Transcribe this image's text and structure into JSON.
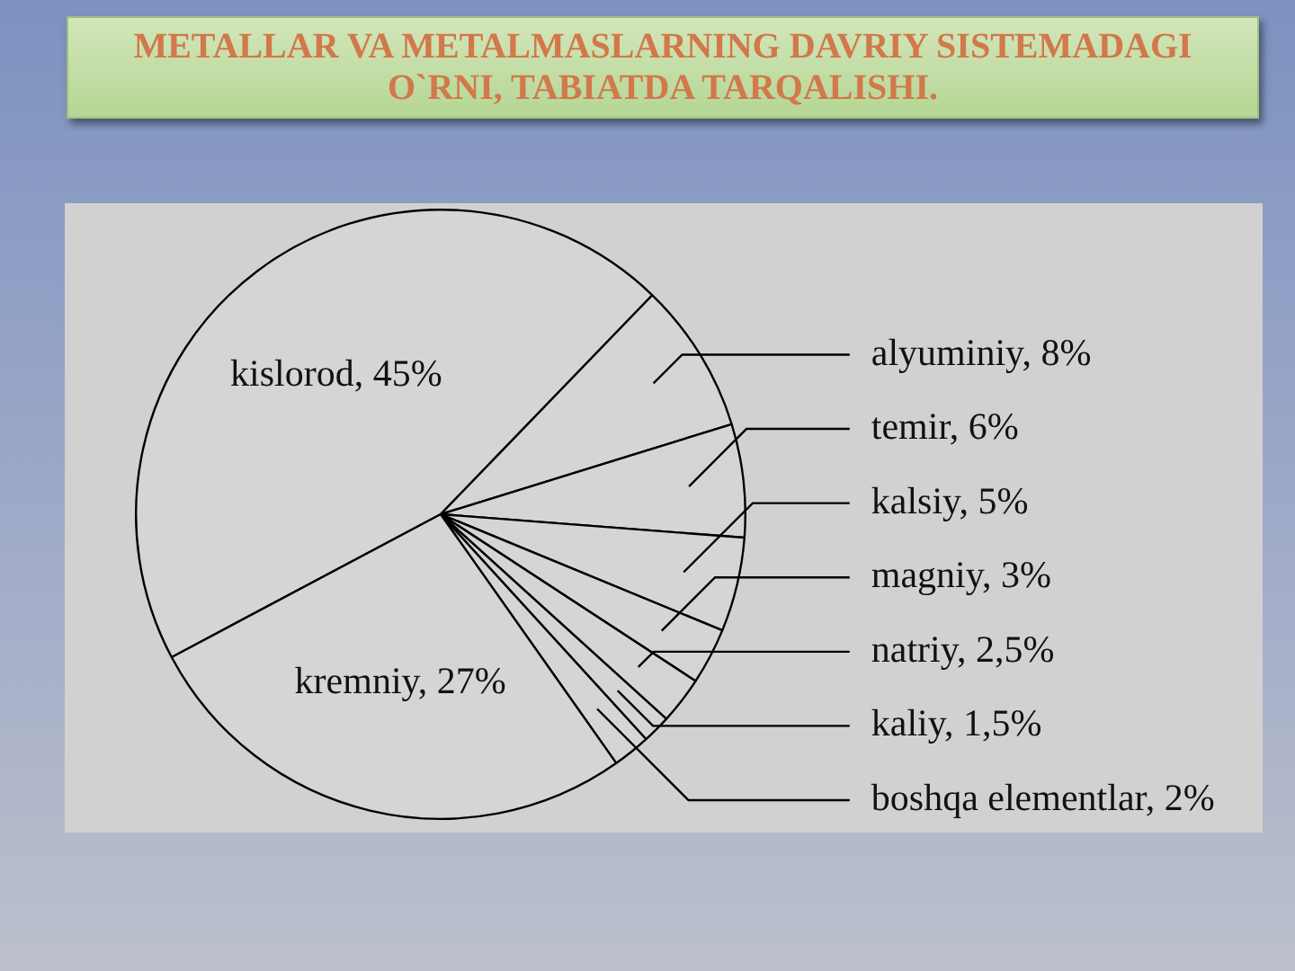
{
  "chart_data": {
    "type": "pie",
    "title": "METALLAR VA METALMASLARNING DAVRIY SISTEMADAGI O`RNI, TABIATDA TARQALISHI.",
    "categories": [
      "kislorod",
      "alyuminiy",
      "temir",
      "kalsiy",
      "magniy",
      "natriy",
      "kaliy",
      "boshqa elementlar",
      "kremniy"
    ],
    "values": [
      45,
      8,
      6,
      5,
      3,
      2.5,
      1.5,
      2,
      27
    ],
    "value_labels": [
      "45%",
      "8%",
      "6%",
      "5%",
      "3%",
      "2,5%",
      "1,5%",
      "2%",
      "27%"
    ],
    "colors": [
      "#d5d5d5",
      "#d5d5d5",
      "#d5d5d5",
      "#d5d5d5",
      "#d5d5d5",
      "#d5d5d5",
      "#d5d5d5",
      "#d5d5d5",
      "#d5d5d5"
    ]
  }
}
